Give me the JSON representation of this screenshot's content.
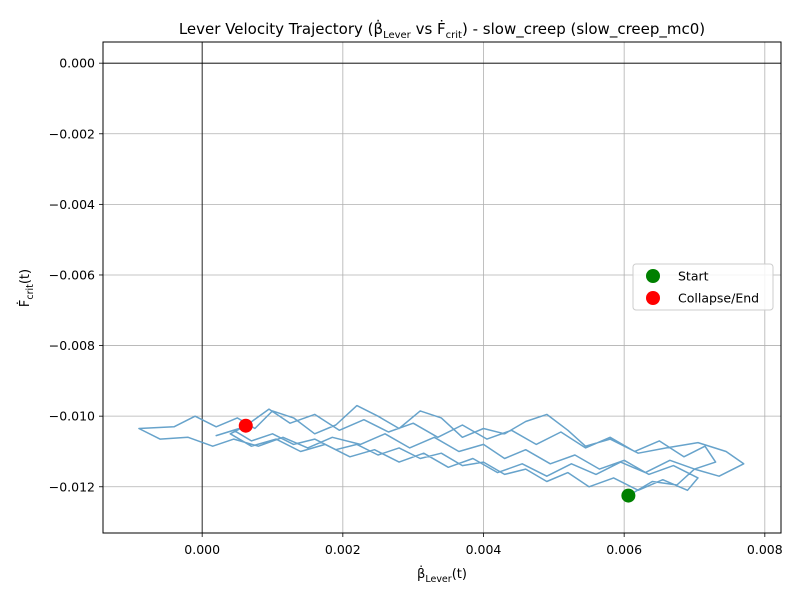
{
  "chart_data": {
    "type": "line",
    "title": {
      "prefix": "Lever Velocity Trajectory (",
      "y_symbol": "β̇",
      "y_sub": "Lever",
      "vs": " vs ",
      "x_symbol": "Ḟ",
      "x_sub": "crit",
      "suffix": ") - slow_creep (slow_creep_mc0)"
    },
    "xlabel": {
      "symbol": "β̇",
      "sub": "Lever",
      "suffix": "(t)"
    },
    "ylabel": {
      "symbol": "Ḟ",
      "sub": "crit",
      "suffix": "(t)"
    },
    "xlim": [
      -0.00141,
      0.00823
    ],
    "ylim": [
      -0.01331,
      0.0006
    ],
    "xticks": [
      0.0,
      0.002,
      0.004,
      0.006,
      0.008
    ],
    "xtick_labels": [
      "0.000",
      "0.002",
      "0.004",
      "0.006",
      "0.008"
    ],
    "yticks": [
      0.0,
      -0.002,
      -0.004,
      -0.006,
      -0.008,
      -0.01,
      -0.012
    ],
    "ytick_labels": [
      "0.000",
      "−0.002",
      "−0.004",
      "−0.006",
      "−0.008",
      "−0.010",
      "−0.012"
    ],
    "grid": true,
    "zero_lines": true,
    "series": [
      {
        "color": "#5f9ec8",
        "note_points": [
          [
            0.00606,
            -0.01225
          ],
          [
            0.0064,
            -0.01185
          ],
          [
            0.00675,
            -0.01195
          ],
          [
            0.007,
            -0.0115
          ],
          [
            0.00735,
            -0.0117
          ],
          [
            0.0077,
            -0.01135
          ],
          [
            0.00745,
            -0.011
          ],
          [
            0.00705,
            -0.01075
          ],
          [
            0.0066,
            -0.0109
          ],
          [
            0.0062,
            -0.01105
          ],
          [
            0.0058,
            -0.01065
          ],
          [
            0.00545,
            -0.01085
          ],
          [
            0.0052,
            -0.0104
          ],
          [
            0.0049,
            -0.00995
          ],
          [
            0.0046,
            -0.01015
          ],
          [
            0.0043,
            -0.0105
          ],
          [
            0.004,
            -0.01035
          ],
          [
            0.0037,
            -0.0106
          ],
          [
            0.0034,
            -0.01005
          ],
          [
            0.0031,
            -0.00985
          ],
          [
            0.0028,
            -0.01035
          ],
          [
            0.0025,
            -0.01
          ],
          [
            0.0022,
            -0.0097
          ],
          [
            0.0019,
            -0.01025
          ],
          [
            0.0016,
            -0.0105
          ],
          [
            0.0013,
            -0.01005
          ],
          [
            0.001,
            -0.00985
          ],
          [
            0.00075,
            -0.01035
          ],
          [
            0.0005,
            -0.01005
          ],
          [
            0.0002,
            -0.0103
          ],
          [
            -0.0001,
            -0.01
          ],
          [
            -0.0004,
            -0.0103
          ],
          [
            -0.0009,
            -0.01035
          ],
          [
            -0.0006,
            -0.01065
          ],
          [
            -0.0002,
            -0.0106
          ],
          [
            0.00015,
            -0.01085
          ],
          [
            0.00045,
            -0.01065
          ],
          [
            0.0008,
            -0.01085
          ],
          [
            0.00115,
            -0.0106
          ],
          [
            0.0015,
            -0.0109
          ],
          [
            0.00185,
            -0.0106
          ],
          [
            0.00225,
            -0.0108
          ],
          [
            0.0026,
            -0.0105
          ],
          [
            0.00295,
            -0.0109
          ],
          [
            0.0033,
            -0.0106
          ],
          [
            0.00365,
            -0.011
          ],
          [
            0.004,
            -0.0108
          ],
          [
            0.0043,
            -0.0112
          ],
          [
            0.0046,
            -0.01095
          ],
          [
            0.00495,
            -0.01135
          ],
          [
            0.0053,
            -0.0111
          ],
          [
            0.00565,
            -0.0115
          ],
          [
            0.006,
            -0.01125
          ],
          [
            0.00635,
            -0.01165
          ],
          [
            0.0067,
            -0.0114
          ],
          [
            0.00705,
            -0.01175
          ],
          [
            0.0069,
            -0.0121
          ],
          [
            0.00655,
            -0.0118
          ],
          [
            0.0062,
            -0.0121
          ],
          [
            0.00585,
            -0.01175
          ],
          [
            0.0055,
            -0.012
          ],
          [
            0.0052,
            -0.0116
          ],
          [
            0.0049,
            -0.01185
          ],
          [
            0.0046,
            -0.0115
          ],
          [
            0.0043,
            -0.01165
          ],
          [
            0.004,
            -0.0113
          ],
          [
            0.0037,
            -0.0114
          ],
          [
            0.0034,
            -0.01105
          ],
          [
            0.0031,
            -0.0112
          ],
          [
            0.0028,
            -0.0109
          ],
          [
            0.0025,
            -0.0111
          ],
          [
            0.0022,
            -0.0108
          ],
          [
            0.0019,
            -0.01095
          ],
          [
            0.0016,
            -0.01065
          ],
          [
            0.0013,
            -0.0108
          ],
          [
            0.001,
            -0.0105
          ],
          [
            0.0007,
            -0.0107
          ],
          [
            0.00045,
            -0.0104
          ],
          [
            0.0002,
            -0.01055
          ],
          [
            0.0006,
            -0.0103
          ],
          [
            0.00095,
            -0.0098
          ],
          [
            0.00125,
            -0.0102
          ],
          [
            0.0016,
            -0.00995
          ],
          [
            0.00195,
            -0.0104
          ],
          [
            0.0023,
            -0.0101
          ],
          [
            0.00265,
            -0.01045
          ],
          [
            0.003,
            -0.0102
          ],
          [
            0.00335,
            -0.0106
          ],
          [
            0.0037,
            -0.01025
          ],
          [
            0.00405,
            -0.01065
          ],
          [
            0.0044,
            -0.0104
          ],
          [
            0.00475,
            -0.0108
          ],
          [
            0.0051,
            -0.01045
          ],
          [
            0.00545,
            -0.0109
          ],
          [
            0.0058,
            -0.0106
          ],
          [
            0.00615,
            -0.011
          ],
          [
            0.0065,
            -0.0107
          ],
          [
            0.00685,
            -0.01115
          ],
          [
            0.00715,
            -0.01085
          ],
          [
            0.0073,
            -0.0113
          ],
          [
            0.007,
            -0.0115
          ],
          [
            0.00665,
            -0.01125
          ],
          [
            0.0063,
            -0.0116
          ],
          [
            0.00595,
            -0.0113
          ],
          [
            0.0056,
            -0.01165
          ],
          [
            0.00525,
            -0.01135
          ],
          [
            0.0049,
            -0.0117
          ],
          [
            0.00455,
            -0.01135
          ],
          [
            0.0042,
            -0.0116
          ],
          [
            0.00385,
            -0.0112
          ],
          [
            0.0035,
            -0.01145
          ],
          [
            0.00315,
            -0.01105
          ],
          [
            0.0028,
            -0.0113
          ],
          [
            0.00245,
            -0.01095
          ],
          [
            0.0021,
            -0.01115
          ],
          [
            0.00175,
            -0.0108
          ],
          [
            0.0014,
            -0.011
          ],
          [
            0.00105,
            -0.01065
          ],
          [
            0.0007,
            -0.01085
          ],
          [
            0.0004,
            -0.0105
          ],
          [
            0.00062,
            -0.01027
          ]
        ]
      }
    ],
    "markers": [
      {
        "label": "Start",
        "x": 0.00606,
        "y": -0.01225,
        "color": "#008000"
      },
      {
        "label": "Collapse/End",
        "x": 0.00062,
        "y": -0.01027,
        "color": "#ff0000"
      }
    ],
    "legend_placement": "center-right"
  }
}
